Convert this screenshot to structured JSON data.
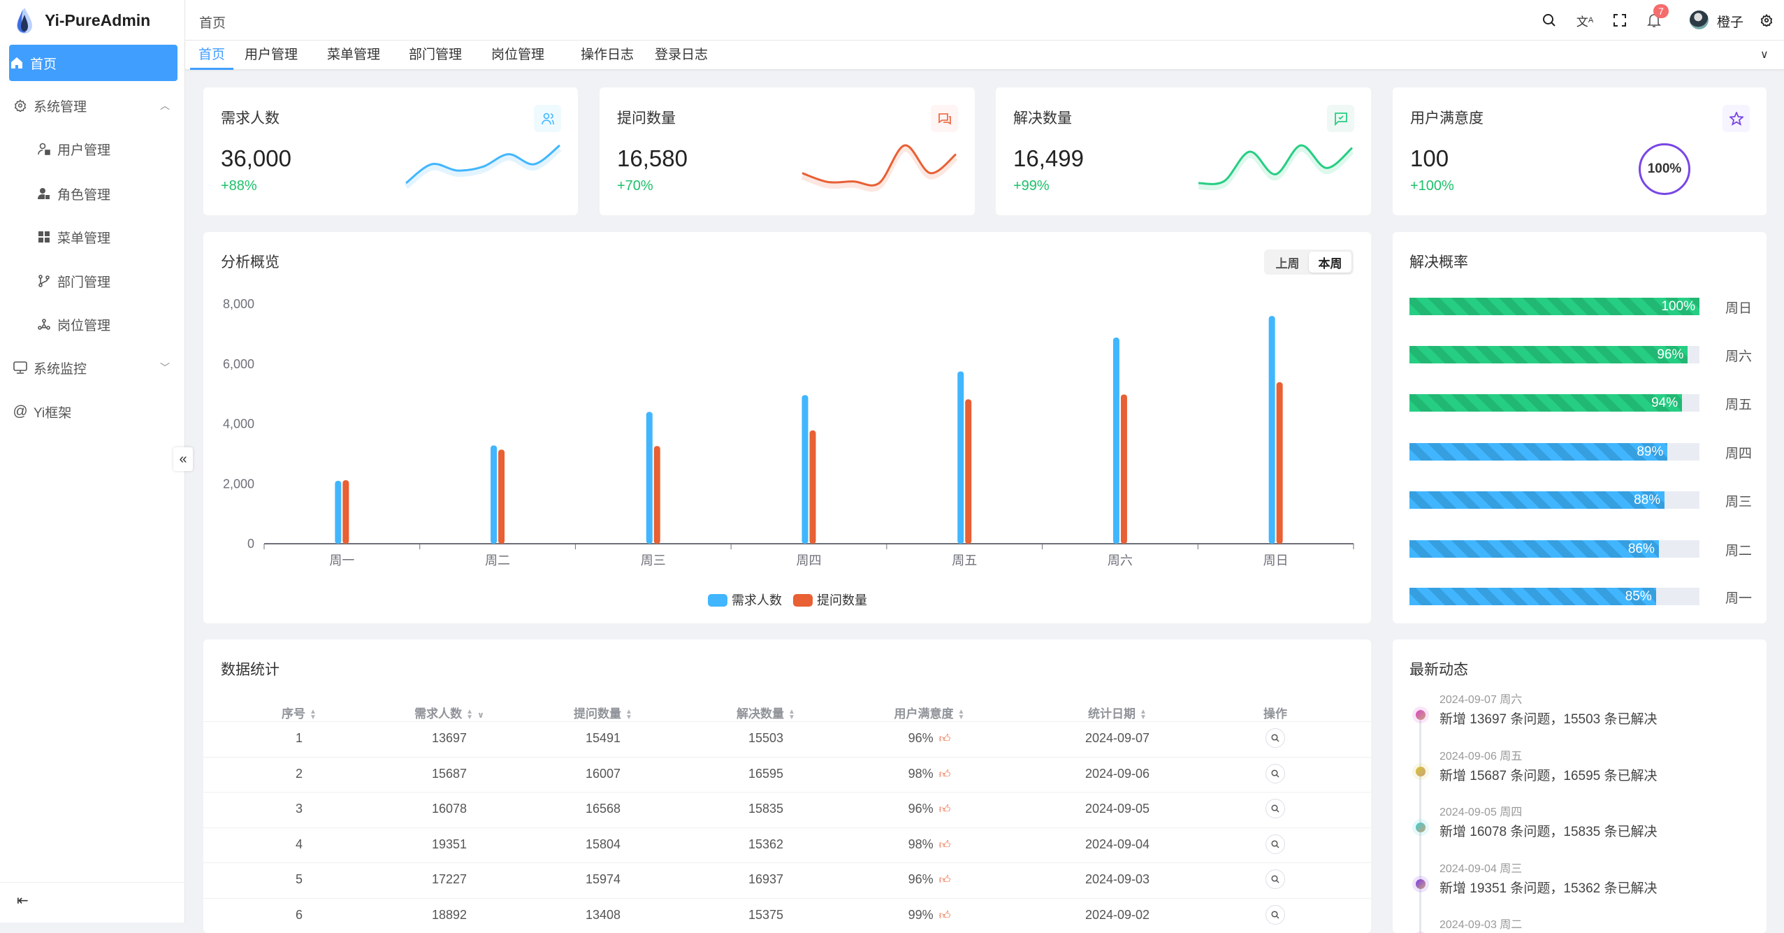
{
  "app": {
    "title": "Yi-PureAdmin"
  },
  "sidebar": {
    "items": [
      {
        "label": "首页",
        "icon": "home-icon",
        "active": true
      },
      {
        "label": "系统管理",
        "icon": "gear-icon",
        "expanded": true
      },
      {
        "label": "用户管理",
        "icon": "user-lock-icon"
      },
      {
        "label": "角色管理",
        "icon": "role-icon"
      },
      {
        "label": "菜单管理",
        "icon": "grid-icon"
      },
      {
        "label": "部门管理",
        "icon": "branch-icon"
      },
      {
        "label": "岗位管理",
        "icon": "network-icon"
      },
      {
        "label": "系统监控",
        "icon": "monitor-icon",
        "expanded": false
      },
      {
        "label": "Yi框架",
        "icon": "at-icon"
      }
    ]
  },
  "header": {
    "breadcrumb": "首页",
    "notifications": "7",
    "username": "橙子"
  },
  "tabs": [
    "首页",
    "用户管理",
    "菜单管理",
    "部门管理",
    "岗位管理",
    "操作日志",
    "登录日志"
  ],
  "stats": [
    {
      "title": "需求人数",
      "value": "36,000",
      "pct": "+88%",
      "color": "#41b6ff",
      "bg": "#effaff",
      "icon": "users-icon",
      "trend": [
        1,
        4,
        3,
        3.6,
        5.6,
        4,
        7
      ]
    },
    {
      "title": "提问数量",
      "value": "16,580",
      "pct": "+70%",
      "color": "#e85f33",
      "bg": "#fff5f4",
      "icon": "message-icon",
      "trend": [
        3,
        1.4,
        1.5,
        1.2,
        8,
        3,
        6.4
      ]
    },
    {
      "title": "解决数量",
      "value": "16,499",
      "pct": "+99%",
      "color": "#26ce83",
      "bg": "#eff8f4",
      "icon": "check-message-icon",
      "trend": [
        1,
        1.3,
        6,
        2.4,
        7,
        3.4,
        6.6
      ]
    },
    {
      "title": "用户满意度",
      "value": "100",
      "pct": "+100%",
      "color": "#7846e5",
      "bg": "#f6f4fe",
      "icon": "star-icon",
      "gauge": "100%",
      "gauge_value": 100
    }
  ],
  "overview": {
    "title": "分析概览",
    "toggle": [
      "上周",
      "本周"
    ],
    "active": "本周"
  },
  "chart_data": {
    "type": "bar",
    "categories": [
      "周一",
      "周二",
      "周三",
      "周四",
      "周五",
      "周六",
      "周日"
    ],
    "series": [
      {
        "name": "需求人数",
        "color": "#41b6ff",
        "values": [
          2100,
          3280,
          4400,
          4960,
          5750,
          6880,
          7600
        ]
      },
      {
        "name": "提问数量",
        "color": "#e86033",
        "values": [
          2120,
          3140,
          3260,
          3780,
          4820,
          4980,
          5390
        ]
      }
    ],
    "yticks": [
      "0",
      "2,000",
      "4,000",
      "6,000",
      "8,000"
    ],
    "ylim": [
      0,
      8000
    ],
    "legend": "bottom",
    "grid": false
  },
  "rate": {
    "title": "解决概率",
    "items": [
      {
        "day": "周日",
        "pct": 100,
        "label": "100%",
        "color": "#26ce83"
      },
      {
        "day": "周六",
        "pct": 96,
        "label": "96%",
        "color": "#26ce83"
      },
      {
        "day": "周五",
        "pct": 94,
        "label": "94%",
        "color": "#26ce83"
      },
      {
        "day": "周四",
        "pct": 89,
        "label": "89%",
        "color": "#41b6ff"
      },
      {
        "day": "周三",
        "pct": 88,
        "label": "88%",
        "color": "#41b6ff"
      },
      {
        "day": "周二",
        "pct": 86,
        "label": "86%",
        "color": "#41b6ff"
      },
      {
        "day": "周一",
        "pct": 85,
        "label": "85%",
        "color": "#41b6ff"
      }
    ]
  },
  "table": {
    "title": "数据统计",
    "columns": [
      "序号",
      "需求人数",
      "提问数量",
      "解决数量",
      "用户满意度",
      "统计日期",
      "操作"
    ],
    "rows": [
      [
        "1",
        "13697",
        "15491",
        "15503",
        "96%",
        "2024-09-07"
      ],
      [
        "2",
        "15687",
        "16007",
        "16595",
        "98%",
        "2024-09-06"
      ],
      [
        "3",
        "16078",
        "16568",
        "15835",
        "96%",
        "2024-09-05"
      ],
      [
        "4",
        "19351",
        "15804",
        "15362",
        "98%",
        "2024-09-04"
      ],
      [
        "5",
        "17227",
        "15974",
        "16937",
        "96%",
        "2024-09-03"
      ],
      [
        "6",
        "18892",
        "13408",
        "15375",
        "99%",
        "2024-09-02"
      ]
    ]
  },
  "timeline": {
    "title": "最新动态",
    "items": [
      {
        "date": "2024-09-07 周六",
        "text": "新增 13697 条问题，15503 条已解决",
        "color": "#d946c8"
      },
      {
        "date": "2024-09-06 周五",
        "text": "新增 15687 条问题，16595 条已解决",
        "color": "#d9c43a"
      },
      {
        "date": "2024-09-05 周四",
        "text": "新增 16078 条问题，15835 条已解决",
        "color": "#3ccfd6"
      },
      {
        "date": "2024-09-04 周三",
        "text": "新增 19351 条问题，15362 条已解决",
        "color": "#7c3aed"
      },
      {
        "date": "2024-09-03 周二",
        "text": "",
        "color": "#d946c8"
      }
    ]
  }
}
